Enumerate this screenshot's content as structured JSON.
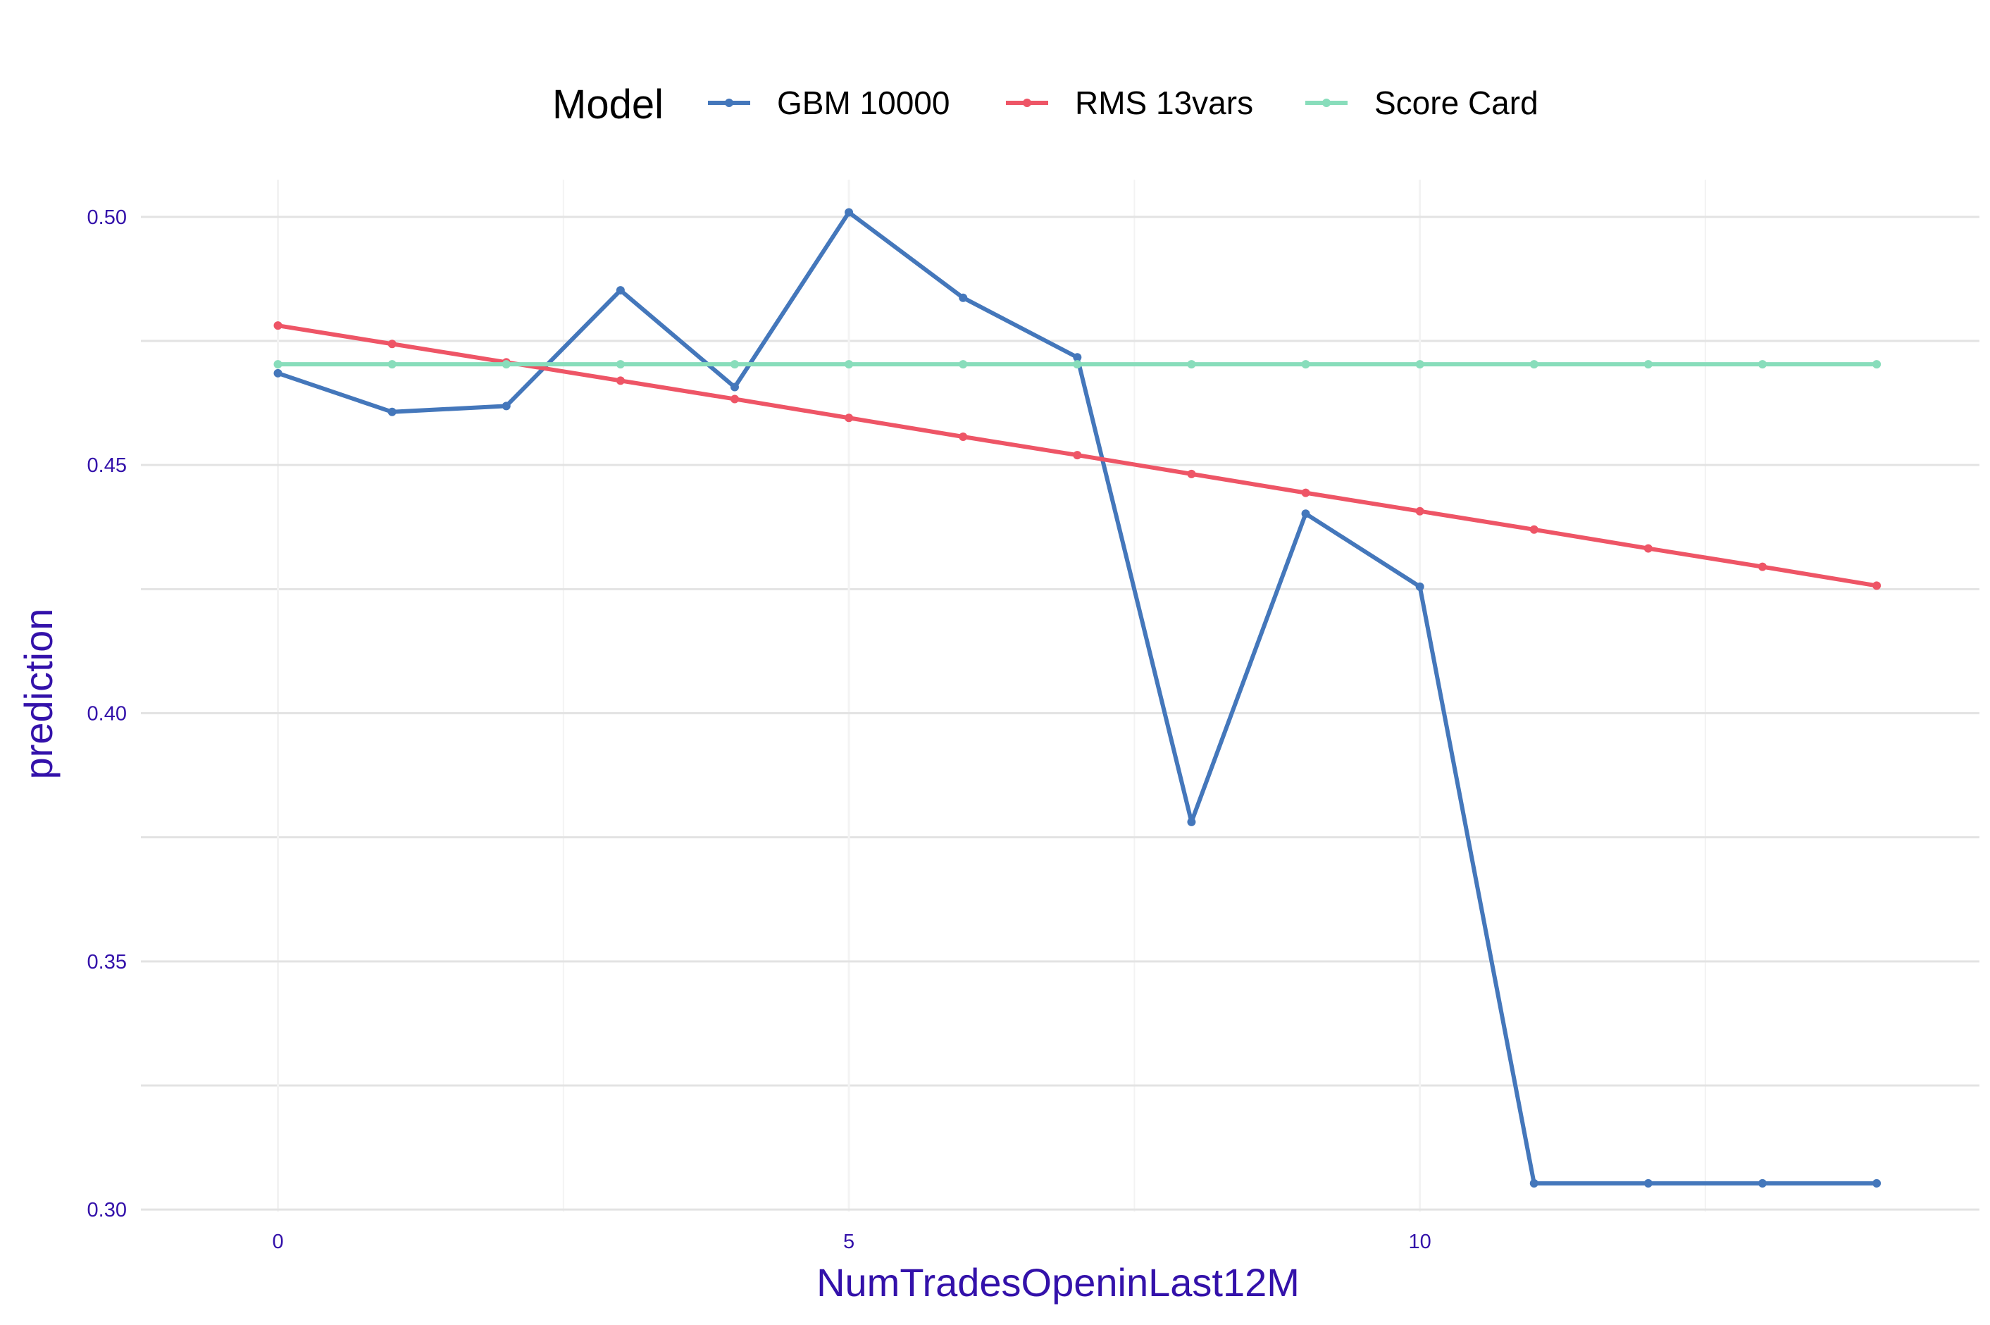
{
  "chart_data": {
    "type": "line",
    "title": "",
    "xlabel": "NumTradesOpeninLast12M",
    "ylabel": "prediction",
    "xlim": [
      -1.2,
      14.9
    ],
    "ylim": [
      0.2996,
      0.5075
    ],
    "x_ticks": [
      0,
      5,
      10
    ],
    "x_tick_labels": [
      "0",
      "5",
      "10"
    ],
    "y_ticks": [
      0.3,
      0.35,
      0.4,
      0.45,
      0.5
    ],
    "y_tick_labels": [
      "0.30",
      "0.35",
      "0.40",
      "0.45",
      "0.50"
    ],
    "x_minor_ticks": [
      2.5,
      7.5,
      12.5
    ],
    "y_minor_ticks": [
      0.325,
      0.375,
      0.425,
      0.475
    ],
    "grid": true,
    "legend": {
      "title": "Model",
      "position": "top"
    },
    "x": [
      0,
      1,
      2,
      3,
      4,
      5,
      6,
      7,
      8,
      9,
      10,
      11,
      12,
      13,
      14
    ],
    "series": [
      {
        "name": "GBM 10000",
        "color": "#4477bb",
        "values": [
          0.4685,
          0.4607,
          0.4619,
          0.4852,
          0.4657,
          0.5009,
          0.4837,
          0.4717,
          0.3781,
          0.4402,
          0.4255,
          0.3053,
          0.3053,
          0.3053,
          0.3053
        ]
      },
      {
        "name": "RMS 13vars",
        "color": "#ee5566",
        "values": [
          0.4781,
          0.4744,
          0.4707,
          0.467,
          0.4633,
          0.4595,
          0.4557,
          0.452,
          0.4482,
          0.4444,
          0.4407,
          0.437,
          0.4332,
          0.4295,
          0.4257
        ]
      },
      {
        "name": "Score Card",
        "color": "#88ddbb",
        "values": [
          0.4703,
          0.4703,
          0.4703,
          0.4703,
          0.4703,
          0.4703,
          0.4703,
          0.4703,
          0.4703,
          0.4703,
          0.4703,
          0.4703,
          0.4703,
          0.4703,
          0.4703
        ]
      }
    ]
  },
  "colors": {
    "axis_text": "#3311aa",
    "grid_major": "#e3e3e3",
    "grid_minor": "#f3f3f3",
    "legend_title": "#000000"
  }
}
